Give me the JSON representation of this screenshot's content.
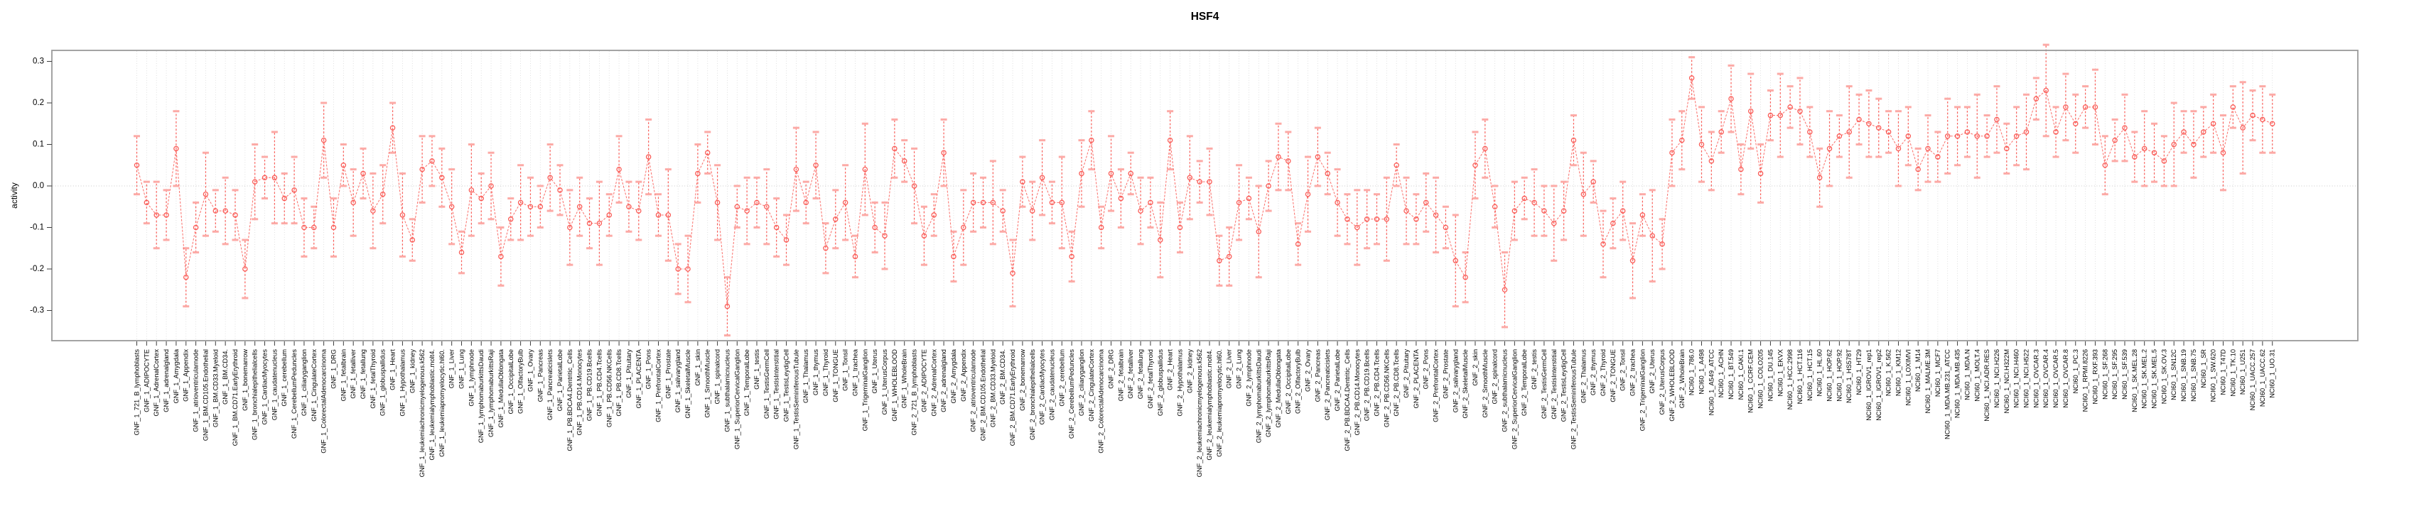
{
  "chart_data": {
    "type": "line",
    "title": "HSF4",
    "ylabel": "activity",
    "xlabel": "",
    "ylim": [
      -0.35,
      0.34
    ],
    "yticks": [
      "0.3",
      "0.2",
      "0.1",
      "0.0",
      "-0.1",
      "-0.2",
      "-0.3"
    ],
    "ytick_values": [
      0.3,
      0.2,
      0.1,
      0.0,
      -0.1,
      -0.2,
      -0.3
    ],
    "grid": true,
    "zero_line": true,
    "legend": "none",
    "marker": "open-circle",
    "error_bars": true,
    "groups": [
      {
        "name": "GNF_1",
        "count": 79
      },
      {
        "name": "GNF_2",
        "count": 79
      },
      {
        "name": "NCI60_1",
        "count": 60
      }
    ],
    "colors": {
      "point": "#fa5d58",
      "line": "#fa6f6a",
      "error_stem": "#fa5d58",
      "error_cap": "#fcaaa6",
      "grid": "#d8d8d8",
      "zero_line": "#c8c8c8",
      "axis": "#9a9a9a",
      "tick": "#3c3c3c",
      "text": "#000000"
    },
    "categories": [
      "GNF_1_721_B_lymphoblasts",
      "GNF_1_ADIPOCYTE",
      "GNF_1_AdrenalCortex",
      "GNF_1_adrenalgland",
      "GNF_1_Amygdala",
      "GNF_1_Appendix",
      "GNF_1_atrioventricularnode",
      "GNF_1_BM.CD105.Endothelial",
      "GNF_1_BM.CD33.Myeloid",
      "GNF_1_BM.CD34.",
      "GNF_1_BM.CD71.EarlyErythroid",
      "GNF_1_bonemarrow",
      "GNF_1_bronchialepithelialcells",
      "GNF_1_CardiacMyocytes",
      "GNF_1_caudatenucleus",
      "GNF_1_cerebellum",
      "GNF_1_CerebellumPeduncles",
      "GNF_1_ciliaryganglion",
      "GNF_1_CingulateCortex",
      "GNF_1_ColorectalAdenocarcinoma",
      "GNF_1_DRG",
      "GNF_1_fetalbrain",
      "GNF_1_fetalliver",
      "GNF_1_fetallung",
      "GNF_1_fetalThyroid",
      "GNF_1_globuspallidus",
      "GNF_1_Heart",
      "GNF_1_Hypothalamus",
      "GNF_1_kidney",
      "GNF_1_leukemiachronicmyelogenous.k562",
      "GNF_1_leukemialymphoblastic.molt4.",
      "GNF_1_leukemiapromyelocytic.hl60.",
      "GNF_1_Liver",
      "GNF_1_Lung",
      "GNF_1_lymphnode",
      "GNF_1_lymphomaburkittsDaudi",
      "GNF_1_lymphomaburkittsRaji",
      "GNF_1_MedullaOblongata",
      "GNF_1_OccipitalLobe",
      "GNF_1_OlfactoryBulb",
      "GNF_1_Ovary",
      "GNF_1_Pancreas",
      "GNF_1_Pancreaticislets",
      "GNF_1_ParietalLobe",
      "GNF_1_PB.BDCA4.Dentritic_Cells",
      "GNF_1_PB.CD14.Monocytes",
      "GNF_1_PB.CD19.Bcells",
      "GNF_1_PB.CD4.Tcells",
      "GNF_1_PB.CD56.NKCells",
      "GNF_1_PB.CD8.Tcells",
      "GNF_1_Pituitary",
      "GNF_1_PLACENTA",
      "GNF_1_Pons",
      "GNF_1_PrefrontalCortex",
      "GNF_1_Prostate",
      "GNF_1_salivarygland",
      "GNF_1_SkeletalMuscle",
      "GNF_1_skin",
      "GNF_1_SmoothMuscle",
      "GNF_1_spinalcord",
      "GNF_1_subthalamicnucleus",
      "GNF_1_SuperiorCervicalGanglion",
      "GNF_1_TemporalLobe",
      "GNF_1_testis",
      "GNF_1_TestisGermCell",
      "GNF_1_TestisInterstitial",
      "GNF_1_TestisLeydigCell",
      "GNF_1_TestisSeminiferousTubule",
      "GNF_1_Thalamus",
      "GNF_1_thymus",
      "GNF_1_Thyroid",
      "GNF_1_TONGUE",
      "GNF_1_Tonsil",
      "GNF_1_trachea",
      "GNF_1_TrigeminalGanglion",
      "GNF_1_Uterus",
      "GNF_1_UterusCorpus",
      "GNF_1_WHOLEBLOOD",
      "GNF_1_WholeBrain",
      "GNF_2_721_B_lymphoblasts",
      "GNF_2_ADIPOCYTE",
      "GNF_2_AdrenalCortex",
      "GNF_2_adrenalgland",
      "GNF_2_Amygdala",
      "GNF_2_Appendix",
      "GNF_2_atrioventricularnode",
      "GNF_2_BM.CD105.Endothelial",
      "GNF_2_BM.CD33.Myeloid",
      "GNF_2_BM.CD34.",
      "GNF_2_BM.CD71.EarlyErythroid",
      "GNF_2_bonemarrow",
      "GNF_2_bronchialepithelialcells",
      "GNF_2_CardiacMyocytes",
      "GNF_2_caudatenucleus",
      "GNF_2_cerebellum",
      "GNF_2_CerebellumPeduncles",
      "GNF_2_ciliaryganglion",
      "GNF_2_CingulateCortex",
      "GNF_2_ColorectalAdenocarcinoma",
      "GNF_2_DRG",
      "GNF_2_fetalbrain",
      "GNF_2_fetalliver",
      "GNF_2_fetallung",
      "GNF_2_fetalThyroid",
      "GNF_2_globuspallidus",
      "GNF_2_Heart",
      "GNF_2_Hypothalamus",
      "GNF_2_kidney",
      "GNF_2_leukemiachronicmyelogenous.k562",
      "GNF_2_leukemialymphoblastic.molt4.",
      "GNF_2_leukemiapromyelocytic.hl60.",
      "GNF_2_Liver",
      "GNF_2_Lung",
      "GNF_2_lymphnode",
      "GNF_2_lymphomaburkittsDaudi",
      "GNF_2_lymphomaburkittsRaji",
      "GNF_2_MedullaOblongata",
      "GNF_2_OccipitalLobe",
      "GNF_2_OlfactoryBulb",
      "GNF_2_Ovary",
      "GNF_2_Pancreas",
      "GNF_2_Pancreaticislets",
      "GNF_2_ParietalLobe",
      "GNF_2_PB.BDCA4.Dentritic_Cells",
      "GNF_2_PB.CD14.Monocytes",
      "GNF_2_PB.CD19.Bcells",
      "GNF_2_PB.CD4.Tcells",
      "GNF_2_PB.CD56.NKCells",
      "GNF_2_PB.CD8.Tcells",
      "GNF_2_Pituitary",
      "GNF_2_PLACENTA",
      "GNF_2_Pons",
      "GNF_2_PrefrontalCortex",
      "GNF_2_Prostate",
      "GNF_2_salivarygland",
      "GNF_2_SkeletalMuscle",
      "GNF_2_skin",
      "GNF_2_SmoothMuscle",
      "GNF_2_spinalcord",
      "GNF_2_subthalamicnucleus",
      "GNF_2_SuperiorCervicalGanglion",
      "GNF_2_TemporalLobe",
      "GNF_2_testis",
      "GNF_2_TestisGermCell",
      "GNF_2_TestisInterstitial",
      "GNF_2_TestisLeydigCell",
      "GNF_2_TestisSeminiferousTubule",
      "GNF_2_Thalamus",
      "GNF_2_thymus",
      "GNF_2_Thyroid",
      "GNF_2_TONGUE",
      "GNF_2_Tonsil",
      "GNF_2_trachea",
      "GNF_2_TrigeminalGanglion",
      "GNF_2_Uterus",
      "GNF_2_UterusCorpus",
      "GNF_2_WHOLEBLOOD",
      "GNF_2_WholeBrain",
      "NCI60_1_786.0",
      "NCI60_1_A498",
      "NCI60_1_A549_ATCC",
      "NCI60_1_ACHN",
      "NCI60_1_BT.549",
      "NCI60_1_CAKI.1",
      "NCI60_1_CCRF.CEM",
      "NCI60_1_COLO205",
      "NCI60_1_DU.145",
      "NCI60_1_EKVX",
      "NCI60_1_HCC.2998",
      "NCI60_1_HCT.116",
      "NCI60_1_HCT.15",
      "NCI60_1_HL.60",
      "NCI60_1_HOP.62",
      "NCI60_1_HOP.92",
      "NCI60_1_HS578T",
      "NCI60_1_HT29",
      "NCI60_1_IGROV1_rep1",
      "NCI60_1_IGROV1_rep2",
      "NCI60_1_K.562",
      "NCI60_1_KM12",
      "NCI60_1_LOXIMVI",
      "NCI60_1_M14",
      "NCI60_1_MALME.3M",
      "NCI60_1_MCF7",
      "NCI60_1_MDA.MB.231_ATCC",
      "NCI60_1_MDA.MB.435",
      "NCI60_1_MDA.N",
      "NCI60_1_MOLT.4",
      "NCI60_1_NCI.ADR.RES",
      "NCI60_1_NCI.H226",
      "NCI60_1_NCI.H322M",
      "NCI60_1_NCI.H460",
      "NCI60_1_NCI.H522",
      "NCI60_1_OVCAR.3",
      "NCI60_1_OVCAR.4",
      "NCI60_1_OVCAR.5",
      "NCI60_1_OVCAR.8",
      "NCI60_1_PC.3",
      "NCI60_1_RPMI.8226",
      "NCI60_1_RXF.393",
      "NCI60_1_SF.268",
      "NCI60_1_SF.295",
      "NCI60_1_SF.539",
      "NCI60_1_SK.MEL.28",
      "NCI60_1_SK.MEL.2",
      "NCI60_1_SK.MEL.5",
      "NCI60_1_SK.OV.3",
      "NCI60_1_SN12C",
      "NCI60_1_SNB.19",
      "NCI60_1_SNB.75",
      "NCI60_1_SR",
      "NCI60_1_SW.620",
      "NCI60_1_T47D",
      "NCI60_1_TK.10",
      "NCI60_1_U251",
      "NCI60_1_UACC.257",
      "NCI60_1_UACC.62",
      "NCI60_1_UO.31"
    ],
    "series": [
      {
        "name": "activity",
        "values": [
          0.05,
          -0.04,
          -0.07,
          -0.07,
          0.09,
          -0.22,
          -0.1,
          -0.02,
          -0.06,
          -0.06,
          -0.07,
          -0.2,
          0.01,
          0.02,
          0.02,
          -0.03,
          -0.01,
          -0.1,
          -0.1,
          0.11,
          -0.1,
          0.05,
          -0.04,
          0.03,
          -0.06,
          -0.02,
          0.14,
          -0.07,
          -0.13,
          0.04,
          0.06,
          0.02,
          -0.05,
          -0.16,
          -0.01,
          -0.03,
          0.0,
          -0.17,
          -0.08,
          -0.04,
          -0.05,
          -0.05,
          0.02,
          -0.01,
          -0.1,
          -0.05,
          -0.09,
          -0.09,
          -0.07,
          0.04,
          -0.05,
          -0.06,
          0.07,
          -0.07,
          -0.07,
          -0.2,
          -0.2,
          0.03,
          0.08,
          -0.04,
          -0.29,
          -0.05,
          -0.06,
          -0.04,
          -0.05,
          -0.1,
          -0.13,
          0.04,
          -0.04,
          0.05,
          -0.15,
          -0.08,
          -0.04,
          -0.17,
          0.04,
          -0.1,
          -0.12,
          0.09,
          0.06,
          0.0,
          -0.12,
          -0.07,
          0.08,
          -0.17,
          -0.1,
          -0.04,
          -0.04,
          -0.04,
          -0.06,
          -0.21,
          0.01,
          -0.06,
          0.02,
          -0.04,
          -0.04,
          -0.17,
          0.03,
          0.11,
          -0.1,
          0.03,
          -0.03,
          0.03,
          -0.06,
          -0.04,
          -0.13,
          0.11,
          -0.1,
          0.02,
          0.01,
          0.01,
          -0.18,
          -0.17,
          -0.04,
          -0.03,
          -0.11,
          0.0,
          0.07,
          0.06,
          -0.14,
          -0.02,
          0.07,
          0.03,
          -0.04,
          -0.08,
          -0.1,
          -0.08,
          -0.08,
          -0.08,
          0.05,
          -0.06,
          -0.08,
          -0.04,
          -0.07,
          -0.1,
          -0.18,
          -0.22,
          0.05,
          0.09,
          -0.05,
          -0.25,
          -0.06,
          -0.03,
          -0.04,
          -0.06,
          -0.09,
          -0.06,
          0.11,
          -0.02,
          0.01,
          -0.14,
          -0.09,
          -0.06,
          -0.18,
          -0.07,
          -0.12,
          -0.14,
          0.08,
          0.11,
          0.26,
          0.1,
          0.06,
          0.13,
          0.21,
          0.04,
          0.18,
          0.03,
          0.17,
          0.17,
          0.19,
          0.18,
          0.13,
          0.02,
          0.09,
          0.12,
          0.13,
          0.16,
          0.15,
          0.14,
          0.13,
          0.09,
          0.12,
          0.04,
          0.09,
          0.07,
          0.12,
          0.12,
          0.13,
          0.12,
          0.12,
          0.16,
          0.09,
          0.12,
          0.13,
          0.21,
          0.23,
          0.13,
          0.19,
          0.15,
          0.19,
          0.19,
          0.05,
          0.11,
          0.14,
          0.07,
          0.09,
          0.08,
          0.06,
          0.1,
          0.13,
          0.1,
          0.13,
          0.15,
          0.08,
          0.19,
          0.14,
          0.17,
          0.16,
          0.15
        ],
        "errors": [
          0.07,
          0.05,
          0.08,
          0.06,
          0.09,
          0.07,
          0.06,
          0.1,
          0.05,
          0.08,
          0.06,
          0.07,
          0.09,
          0.05,
          0.11,
          0.06,
          0.08,
          0.07,
          0.05,
          0.09,
          0.07,
          0.05,
          0.08,
          0.06,
          0.09,
          0.07,
          0.06,
          0.1,
          0.05,
          0.08,
          0.06,
          0.07,
          0.09,
          0.05,
          0.11,
          0.06,
          0.08,
          0.07,
          0.05,
          0.09,
          0.07,
          0.05,
          0.08,
          0.06,
          0.09,
          0.07,
          0.06,
          0.1,
          0.05,
          0.08,
          0.06,
          0.07,
          0.09,
          0.05,
          0.11,
          0.06,
          0.08,
          0.07,
          0.05,
          0.09,
          0.07,
          0.05,
          0.08,
          0.06,
          0.09,
          0.07,
          0.06,
          0.1,
          0.05,
          0.08,
          0.06,
          0.07,
          0.09,
          0.05,
          0.11,
          0.06,
          0.08,
          0.07,
          0.05,
          0.09,
          0.07,
          0.05,
          0.08,
          0.06,
          0.09,
          0.07,
          0.06,
          0.1,
          0.05,
          0.08,
          0.06,
          0.07,
          0.09,
          0.05,
          0.11,
          0.06,
          0.08,
          0.07,
          0.05,
          0.09,
          0.07,
          0.05,
          0.08,
          0.06,
          0.09,
          0.07,
          0.06,
          0.1,
          0.05,
          0.08,
          0.06,
          0.07,
          0.09,
          0.05,
          0.11,
          0.06,
          0.08,
          0.07,
          0.05,
          0.09,
          0.07,
          0.05,
          0.08,
          0.06,
          0.09,
          0.07,
          0.06,
          0.1,
          0.05,
          0.08,
          0.06,
          0.07,
          0.09,
          0.05,
          0.11,
          0.06,
          0.08,
          0.07,
          0.05,
          0.09,
          0.07,
          0.05,
          0.08,
          0.06,
          0.09,
          0.07,
          0.06,
          0.1,
          0.05,
          0.08,
          0.06,
          0.07,
          0.09,
          0.05,
          0.11,
          0.06,
          0.08,
          0.07,
          0.05,
          0.09,
          0.07,
          0.05,
          0.08,
          0.06,
          0.09,
          0.07,
          0.06,
          0.1,
          0.05,
          0.08,
          0.06,
          0.07,
          0.09,
          0.05,
          0.11,
          0.06,
          0.08,
          0.07,
          0.05,
          0.09,
          0.07,
          0.05,
          0.08,
          0.06,
          0.09,
          0.07,
          0.06,
          0.1,
          0.05,
          0.08,
          0.06,
          0.07,
          0.09,
          0.05,
          0.11,
          0.06,
          0.08,
          0.07,
          0.05,
          0.09,
          0.07,
          0.05,
          0.08,
          0.06,
          0.09,
          0.07,
          0.06,
          0.1,
          0.05,
          0.08,
          0.06,
          0.07,
          0.09,
          0.05,
          0.11,
          0.06,
          0.08,
          0.07
        ]
      }
    ]
  }
}
